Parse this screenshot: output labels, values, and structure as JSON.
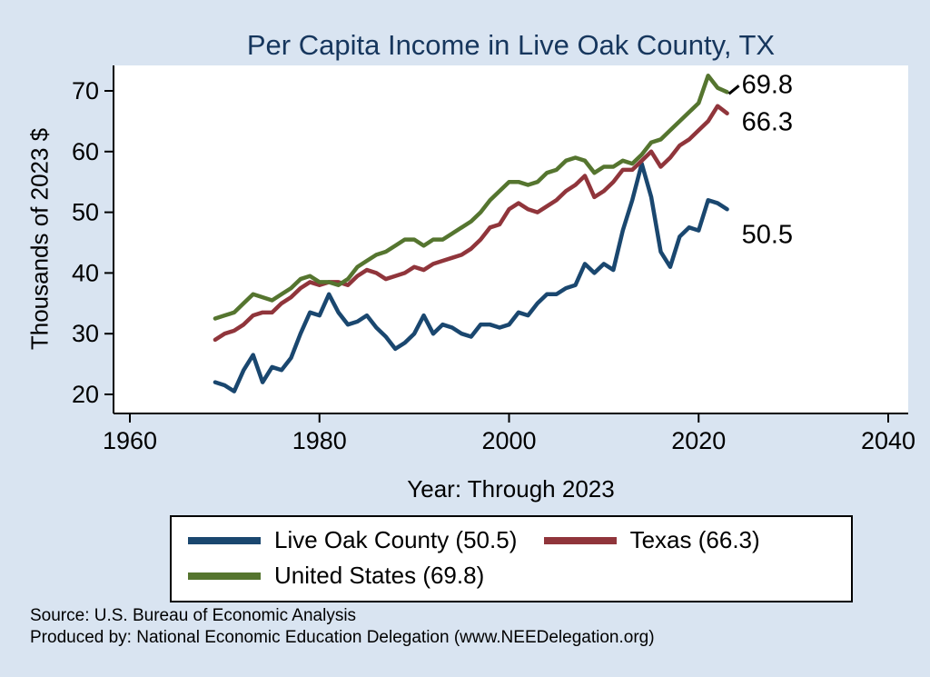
{
  "title": "Per Capita Income in Live Oak County, TX",
  "ylabel": "Thousands of 2023 $",
  "xlabel": "Year: Through 2023",
  "footer": {
    "line1": "Source: U.S. Bureau of Economic Analysis",
    "line2": "Produced by: National Economic Education Delegation (www.NEEDelegation.org)"
  },
  "colors": {
    "live_oak": "#1a476f",
    "texas": "#90353b",
    "us": "#55752f",
    "title": "#16365d",
    "background": "#d9e4f1",
    "plot_bg": "#ffffff",
    "axis": "#000000"
  },
  "legend": [
    {
      "key": "live_oak",
      "label": "Live Oak County (50.5)"
    },
    {
      "key": "texas",
      "label": "Texas (66.3)"
    },
    {
      "key": "us",
      "label": "United States (69.8)"
    }
  ],
  "chart_data": {
    "type": "line",
    "title": "Per Capita Income in Live Oak County, TX",
    "xlabel": "Year: Through 2023",
    "ylabel": "Thousands of 2023 $",
    "xlim": [
      1958,
      2042
    ],
    "ylim": [
      18,
      74
    ],
    "xticks": [
      1960,
      1980,
      2000,
      2020,
      2040
    ],
    "yticks": [
      20,
      30,
      40,
      50,
      60,
      70
    ],
    "grid": false,
    "legend_position": "bottom",
    "x": [
      1969,
      1970,
      1971,
      1972,
      1973,
      1974,
      1975,
      1976,
      1977,
      1978,
      1979,
      1980,
      1981,
      1982,
      1983,
      1984,
      1985,
      1986,
      1987,
      1988,
      1989,
      1990,
      1991,
      1992,
      1993,
      1994,
      1995,
      1996,
      1997,
      1998,
      1999,
      2000,
      2001,
      2002,
      2003,
      2004,
      2005,
      2006,
      2007,
      2008,
      2009,
      2010,
      2011,
      2012,
      2013,
      2014,
      2015,
      2016,
      2017,
      2018,
      2019,
      2020,
      2021,
      2022,
      2023
    ],
    "series": [
      {
        "name": "Live Oak County",
        "key": "live_oak",
        "color": "#1a476f",
        "end_label": "50.5",
        "values": [
          22.0,
          21.5,
          20.5,
          24.0,
          26.5,
          22.0,
          24.5,
          24.0,
          26.0,
          30.0,
          33.5,
          33.0,
          36.5,
          33.5,
          31.5,
          32.0,
          33.0,
          31.0,
          29.5,
          27.5,
          28.5,
          30.0,
          33.0,
          30.0,
          31.5,
          31.0,
          30.0,
          29.5,
          31.5,
          31.5,
          31.0,
          31.5,
          33.5,
          33.0,
          35.0,
          36.5,
          36.5,
          37.5,
          38.0,
          41.5,
          40.0,
          41.5,
          40.5,
          47.0,
          52.0,
          58.0,
          52.5,
          43.5,
          41.0,
          46.0,
          47.5,
          47.0,
          52.0,
          51.5,
          50.5
        ]
      },
      {
        "name": "Texas",
        "key": "texas",
        "color": "#90353b",
        "end_label": "66.3",
        "values": [
          29.0,
          30.0,
          30.5,
          31.5,
          33.0,
          33.5,
          33.5,
          35.0,
          36.0,
          37.5,
          38.5,
          38.0,
          38.5,
          38.5,
          38.0,
          39.5,
          40.5,
          40.0,
          39.0,
          39.5,
          40.0,
          41.0,
          40.5,
          41.5,
          42.0,
          42.5,
          43.0,
          44.0,
          45.5,
          47.5,
          48.0,
          50.5,
          51.5,
          50.5,
          50.0,
          51.0,
          52.0,
          53.5,
          54.5,
          56.0,
          52.5,
          53.5,
          55.0,
          57.0,
          57.0,
          58.5,
          60.0,
          57.5,
          59.0,
          61.0,
          62.0,
          63.5,
          65.0,
          67.5,
          66.3
        ]
      },
      {
        "name": "United States",
        "key": "us",
        "color": "#55752f",
        "end_label": "69.8",
        "values": [
          32.5,
          33.0,
          33.5,
          35.0,
          36.5,
          36.0,
          35.5,
          36.5,
          37.5,
          39.0,
          39.5,
          38.5,
          38.5,
          38.0,
          39.0,
          41.0,
          42.0,
          43.0,
          43.5,
          44.5,
          45.5,
          45.5,
          44.5,
          45.5,
          45.5,
          46.5,
          47.5,
          48.5,
          50.0,
          52.0,
          53.5,
          55.0,
          55.0,
          54.5,
          55.0,
          56.5,
          57.0,
          58.5,
          59.0,
          58.5,
          56.5,
          57.5,
          57.5,
          58.5,
          58.0,
          59.5,
          61.5,
          62.0,
          63.5,
          65.0,
          66.5,
          68.0,
          72.5,
          70.5,
          69.8
        ]
      }
    ]
  }
}
